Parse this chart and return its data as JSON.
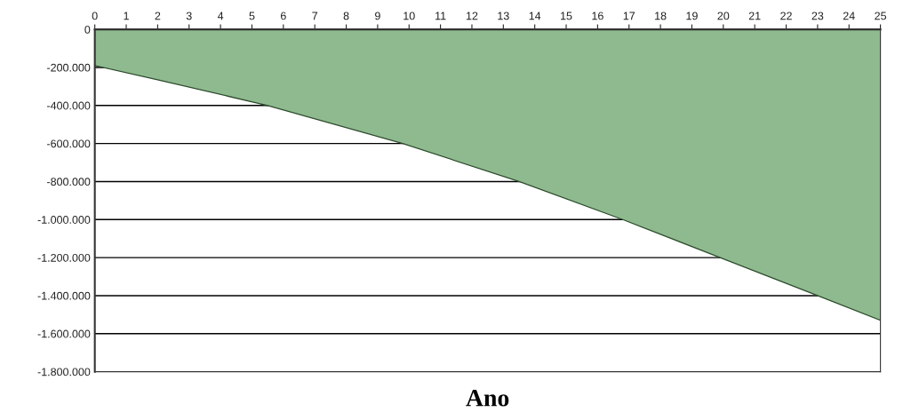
{
  "chart_data": {
    "type": "area",
    "xlabel": "Ano",
    "x": [
      0,
      2,
      5.5,
      9.8,
      13.5,
      16.8,
      19.9,
      23,
      25
    ],
    "series": [
      {
        "color": "#8fba8f",
        "values": [
          -190000,
          -265000,
          -400000,
          -600000,
          -800000,
          -1000000,
          -1200000,
          -1400000,
          -1530000
        ]
      }
    ],
    "xlim": [
      0,
      25
    ],
    "xticks": [
      0,
      1,
      2,
      3,
      4,
      5,
      6,
      7,
      8,
      9,
      10,
      11,
      12,
      13,
      14,
      15,
      16,
      17,
      18,
      19,
      20,
      21,
      22,
      23,
      24,
      25
    ],
    "ylim": [
      -1800000,
      0
    ],
    "yticks": [
      {
        "value": 0,
        "label": "0"
      },
      {
        "value": -200000,
        "label": "-200.000"
      },
      {
        "value": -400000,
        "label": "-400.000"
      },
      {
        "value": -600000,
        "label": "-600.000"
      },
      {
        "value": -800000,
        "label": "-800.000"
      },
      {
        "value": -1000000,
        "label": "-1.000.000"
      },
      {
        "value": -1200000,
        "label": "-1.200.000"
      },
      {
        "value": -1400000,
        "label": "-1.400.000"
      },
      {
        "value": -1600000,
        "label": "-1.600.000"
      },
      {
        "value": -1800000,
        "label": "-1.800.000"
      }
    ],
    "grid": "y"
  }
}
